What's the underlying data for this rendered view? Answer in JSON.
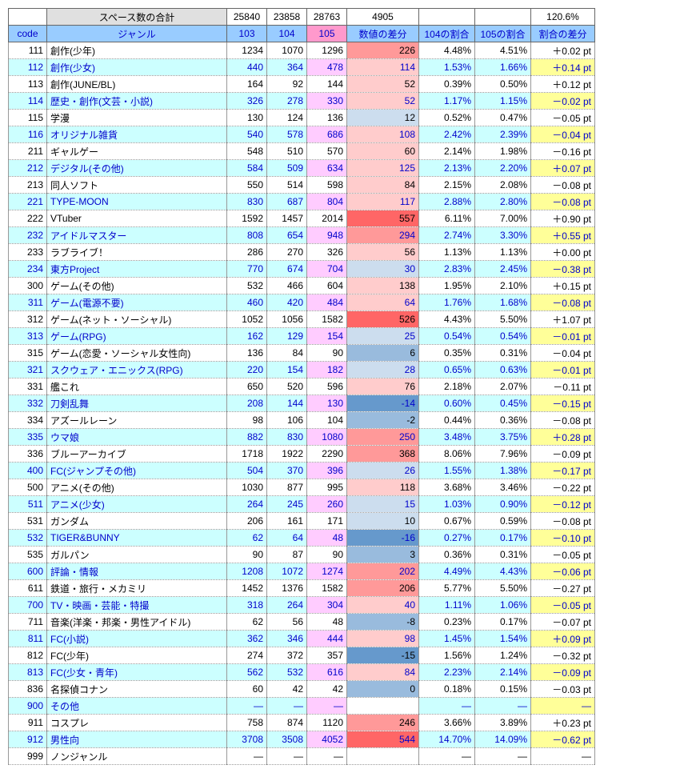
{
  "summary": {
    "label": "スペース数の合計",
    "c103": "25840",
    "c104": "23858",
    "c105": "28763",
    "diffNum": "4905",
    "ratio104": "",
    "ratio105": "",
    "diffRatio": "120.6%"
  },
  "headers": {
    "code": "code",
    "genre": "ジャンル",
    "c103": "103",
    "c104": "104",
    "c105": "105",
    "diffNum": "数値の差分",
    "ratio104": "104の割合",
    "ratio105": "105の割合",
    "diffRatio": "割合の差分"
  },
  "colors": {
    "summaryLabelBg": "#e0e0e0",
    "headerBg": "#99ccff",
    "headerPinkBg": "#ff99cc",
    "rowHighlightBg": "#ccffff",
    "pinkCellBg": "#ffccff",
    "yellowCellBg": "#ffff99",
    "blueText": "#0000cc",
    "diffRed1": "#ff6666",
    "diffRed2": "#ff9999",
    "diffRed3": "#ffcccc",
    "diffBlue1": "#6699cc",
    "diffBlue2": "#99bbdd",
    "diffBlue3": "#ccddee"
  },
  "colWidths": {
    "code": 48,
    "genre": 225,
    "c103": 50,
    "c104": 50,
    "c105": 50,
    "diffNum": 90,
    "ratio104": 70,
    "ratio105": 70,
    "diffRatio": 80
  },
  "rows": [
    {
      "code": "111",
      "genre": "創作(少年)",
      "c103": "1234",
      "c104": "1070",
      "c105": "1296",
      "diffNum": "226",
      "diffShade": "r2",
      "ratio104": "4.48%",
      "ratio105": "4.51%",
      "diffRatio": "＋0.02 pt",
      "hl": false,
      "yel": false
    },
    {
      "code": "112",
      "genre": "創作(少女)",
      "c103": "440",
      "c104": "364",
      "c105": "478",
      "diffNum": "114",
      "diffShade": "r3",
      "ratio104": "1.53%",
      "ratio105": "1.66%",
      "diffRatio": "＋0.14 pt",
      "hl": true,
      "yel": true
    },
    {
      "code": "113",
      "genre": "創作(JUNE/BL)",
      "c103": "164",
      "c104": "92",
      "c105": "144",
      "diffNum": "52",
      "diffShade": "r3",
      "ratio104": "0.39%",
      "ratio105": "0.50%",
      "diffRatio": "＋0.12 pt",
      "hl": false,
      "yel": false
    },
    {
      "code": "114",
      "genre": "歴史・創作(文芸・小説)",
      "c103": "326",
      "c104": "278",
      "c105": "330",
      "diffNum": "52",
      "diffShade": "r3",
      "ratio104": "1.17%",
      "ratio105": "1.15%",
      "diffRatio": "－0.02 pt",
      "hl": true,
      "yel": true
    },
    {
      "code": "115",
      "genre": "学漫",
      "c103": "130",
      "c104": "124",
      "c105": "136",
      "diffNum": "12",
      "diffShade": "b3",
      "ratio104": "0.52%",
      "ratio105": "0.47%",
      "diffRatio": "－0.05 pt",
      "hl": false,
      "yel": false
    },
    {
      "code": "116",
      "genre": "オリジナル雑貨",
      "c103": "540",
      "c104": "578",
      "c105": "686",
      "diffNum": "108",
      "diffShade": "r3",
      "ratio104": "2.42%",
      "ratio105": "2.39%",
      "diffRatio": "－0.04 pt",
      "hl": true,
      "yel": true
    },
    {
      "code": "211",
      "genre": "ギャルゲー",
      "c103": "548",
      "c104": "510",
      "c105": "570",
      "diffNum": "60",
      "diffShade": "r3",
      "ratio104": "2.14%",
      "ratio105": "1.98%",
      "diffRatio": "－0.16 pt",
      "hl": false,
      "yel": false
    },
    {
      "code": "212",
      "genre": "デジタル(その他)",
      "c103": "584",
      "c104": "509",
      "c105": "634",
      "diffNum": "125",
      "diffShade": "r3",
      "ratio104": "2.13%",
      "ratio105": "2.20%",
      "diffRatio": "＋0.07 pt",
      "hl": true,
      "yel": true
    },
    {
      "code": "213",
      "genre": "同人ソフト",
      "c103": "550",
      "c104": "514",
      "c105": "598",
      "diffNum": "84",
      "diffShade": "r3",
      "ratio104": "2.15%",
      "ratio105": "2.08%",
      "diffRatio": "－0.08 pt",
      "hl": false,
      "yel": false
    },
    {
      "code": "221",
      "genre": "TYPE-MOON",
      "c103": "830",
      "c104": "687",
      "c105": "804",
      "diffNum": "117",
      "diffShade": "r3",
      "ratio104": "2.88%",
      "ratio105": "2.80%",
      "diffRatio": "－0.08 pt",
      "hl": true,
      "yel": true
    },
    {
      "code": "222",
      "genre": "VTuber",
      "c103": "1592",
      "c104": "1457",
      "c105": "2014",
      "diffNum": "557",
      "diffShade": "r1",
      "ratio104": "6.11%",
      "ratio105": "7.00%",
      "diffRatio": "＋0.90 pt",
      "hl": false,
      "yel": false
    },
    {
      "code": "232",
      "genre": "アイドルマスター",
      "c103": "808",
      "c104": "654",
      "c105": "948",
      "diffNum": "294",
      "diffShade": "r2",
      "ratio104": "2.74%",
      "ratio105": "3.30%",
      "diffRatio": "＋0.55 pt",
      "hl": true,
      "yel": true
    },
    {
      "code": "233",
      "genre": "ラブライブ！",
      "c103": "286",
      "c104": "270",
      "c105": "326",
      "diffNum": "56",
      "diffShade": "r3",
      "ratio104": "1.13%",
      "ratio105": "1.13%",
      "diffRatio": "＋0.00 pt",
      "hl": false,
      "yel": false
    },
    {
      "code": "234",
      "genre": "東方Project",
      "c103": "770",
      "c104": "674",
      "c105": "704",
      "diffNum": "30",
      "diffShade": "b3",
      "ratio104": "2.83%",
      "ratio105": "2.45%",
      "diffRatio": "－0.38 pt",
      "hl": true,
      "yel": true
    },
    {
      "code": "300",
      "genre": "ゲーム(その他)",
      "c103": "532",
      "c104": "466",
      "c105": "604",
      "diffNum": "138",
      "diffShade": "r3",
      "ratio104": "1.95%",
      "ratio105": "2.10%",
      "diffRatio": "＋0.15 pt",
      "hl": false,
      "yel": false
    },
    {
      "code": "311",
      "genre": "ゲーム(電源不要)",
      "c103": "460",
      "c104": "420",
      "c105": "484",
      "diffNum": "64",
      "diffShade": "r3",
      "ratio104": "1.76%",
      "ratio105": "1.68%",
      "diffRatio": "－0.08 pt",
      "hl": true,
      "yel": true
    },
    {
      "code": "312",
      "genre": "ゲーム(ネット・ソーシャル)",
      "c103": "1052",
      "c104": "1056",
      "c105": "1582",
      "diffNum": "526",
      "diffShade": "r1",
      "ratio104": "4.43%",
      "ratio105": "5.50%",
      "diffRatio": "＋1.07 pt",
      "hl": false,
      "yel": false
    },
    {
      "code": "313",
      "genre": "ゲーム(RPG)",
      "c103": "162",
      "c104": "129",
      "c105": "154",
      "diffNum": "25",
      "diffShade": "b3",
      "ratio104": "0.54%",
      "ratio105": "0.54%",
      "diffRatio": "－0.01 pt",
      "hl": true,
      "yel": true
    },
    {
      "code": "315",
      "genre": "ゲーム(恋愛・ソーシャル女性向)",
      "c103": "136",
      "c104": "84",
      "c105": "90",
      "diffNum": "6",
      "diffShade": "b2",
      "ratio104": "0.35%",
      "ratio105": "0.31%",
      "diffRatio": "－0.04 pt",
      "hl": false,
      "yel": false
    },
    {
      "code": "321",
      "genre": "スクウェア・エニックス(RPG)",
      "c103": "220",
      "c104": "154",
      "c105": "182",
      "diffNum": "28",
      "diffShade": "b3",
      "ratio104": "0.65%",
      "ratio105": "0.63%",
      "diffRatio": "－0.01 pt",
      "hl": true,
      "yel": true
    },
    {
      "code": "331",
      "genre": "艦これ",
      "c103": "650",
      "c104": "520",
      "c105": "596",
      "diffNum": "76",
      "diffShade": "r3",
      "ratio104": "2.18%",
      "ratio105": "2.07%",
      "diffRatio": "－0.11 pt",
      "hl": false,
      "yel": false
    },
    {
      "code": "332",
      "genre": "刀剣乱舞",
      "c103": "208",
      "c104": "144",
      "c105": "130",
      "diffNum": "-14",
      "diffShade": "b1",
      "ratio104": "0.60%",
      "ratio105": "0.45%",
      "diffRatio": "－0.15 pt",
      "hl": true,
      "yel": true
    },
    {
      "code": "334",
      "genre": "アズールレーン",
      "c103": "98",
      "c104": "106",
      "c105": "104",
      "diffNum": "-2",
      "diffShade": "b2",
      "ratio104": "0.44%",
      "ratio105": "0.36%",
      "diffRatio": "－0.08 pt",
      "hl": false,
      "yel": false
    },
    {
      "code": "335",
      "genre": "ウマ娘",
      "c103": "882",
      "c104": "830",
      "c105": "1080",
      "diffNum": "250",
      "diffShade": "r2",
      "ratio104": "3.48%",
      "ratio105": "3.75%",
      "diffRatio": "＋0.28 pt",
      "hl": true,
      "yel": true
    },
    {
      "code": "336",
      "genre": "ブルーアーカイブ",
      "c103": "1718",
      "c104": "1922",
      "c105": "2290",
      "diffNum": "368",
      "diffShade": "r2",
      "ratio104": "8.06%",
      "ratio105": "7.96%",
      "diffRatio": "－0.09 pt",
      "hl": false,
      "yel": false
    },
    {
      "code": "400",
      "genre": "FC(ジャンプその他)",
      "c103": "504",
      "c104": "370",
      "c105": "396",
      "diffNum": "26",
      "diffShade": "b3",
      "ratio104": "1.55%",
      "ratio105": "1.38%",
      "diffRatio": "－0.17 pt",
      "hl": true,
      "yel": true
    },
    {
      "code": "500",
      "genre": "アニメ(その他)",
      "c103": "1030",
      "c104": "877",
      "c105": "995",
      "diffNum": "118",
      "diffShade": "r3",
      "ratio104": "3.68%",
      "ratio105": "3.46%",
      "diffRatio": "－0.22 pt",
      "hl": false,
      "yel": false
    },
    {
      "code": "511",
      "genre": "アニメ(少女)",
      "c103": "264",
      "c104": "245",
      "c105": "260",
      "diffNum": "15",
      "diffShade": "b3",
      "ratio104": "1.03%",
      "ratio105": "0.90%",
      "diffRatio": "－0.12 pt",
      "hl": true,
      "yel": true
    },
    {
      "code": "531",
      "genre": "ガンダム",
      "c103": "206",
      "c104": "161",
      "c105": "171",
      "diffNum": "10",
      "diffShade": "b3",
      "ratio104": "0.67%",
      "ratio105": "0.59%",
      "diffRatio": "－0.08 pt",
      "hl": false,
      "yel": false
    },
    {
      "code": "532",
      "genre": "TIGER&BUNNY",
      "c103": "62",
      "c104": "64",
      "c105": "48",
      "diffNum": "-16",
      "diffShade": "b1",
      "ratio104": "0.27%",
      "ratio105": "0.17%",
      "diffRatio": "－0.10 pt",
      "hl": true,
      "yel": true
    },
    {
      "code": "535",
      "genre": "ガルパン",
      "c103": "90",
      "c104": "87",
      "c105": "90",
      "diffNum": "3",
      "diffShade": "b2",
      "ratio104": "0.36%",
      "ratio105": "0.31%",
      "diffRatio": "－0.05 pt",
      "hl": false,
      "yel": false
    },
    {
      "code": "600",
      "genre": "評論・情報",
      "c103": "1208",
      "c104": "1072",
      "c105": "1274",
      "diffNum": "202",
      "diffShade": "r2",
      "ratio104": "4.49%",
      "ratio105": "4.43%",
      "diffRatio": "－0.06 pt",
      "hl": true,
      "yel": true
    },
    {
      "code": "611",
      "genre": "鉄道・旅行・メカミリ",
      "c103": "1452",
      "c104": "1376",
      "c105": "1582",
      "diffNum": "206",
      "diffShade": "r2",
      "ratio104": "5.77%",
      "ratio105": "5.50%",
      "diffRatio": "－0.27 pt",
      "hl": false,
      "yel": false
    },
    {
      "code": "700",
      "genre": "TV・映画・芸能・特撮",
      "c103": "318",
      "c104": "264",
      "c105": "304",
      "diffNum": "40",
      "diffShade": "r3",
      "ratio104": "1.11%",
      "ratio105": "1.06%",
      "diffRatio": "－0.05 pt",
      "hl": true,
      "yel": true
    },
    {
      "code": "711",
      "genre": "音楽(洋楽・邦楽・男性アイドル)",
      "c103": "62",
      "c104": "56",
      "c105": "48",
      "diffNum": "-8",
      "diffShade": "b2",
      "ratio104": "0.23%",
      "ratio105": "0.17%",
      "diffRatio": "－0.07 pt",
      "hl": false,
      "yel": false
    },
    {
      "code": "811",
      "genre": "FC(小説)",
      "c103": "362",
      "c104": "346",
      "c105": "444",
      "diffNum": "98",
      "diffShade": "r3",
      "ratio104": "1.45%",
      "ratio105": "1.54%",
      "diffRatio": "＋0.09 pt",
      "hl": true,
      "yel": true
    },
    {
      "code": "812",
      "genre": "FC(少年)",
      "c103": "274",
      "c104": "372",
      "c105": "357",
      "diffNum": "-15",
      "diffShade": "b1",
      "ratio104": "1.56%",
      "ratio105": "1.24%",
      "diffRatio": "－0.32 pt",
      "hl": false,
      "yel": false
    },
    {
      "code": "813",
      "genre": "FC(少女・青年)",
      "c103": "562",
      "c104": "532",
      "c105": "616",
      "diffNum": "84",
      "diffShade": "r3",
      "ratio104": "2.23%",
      "ratio105": "2.14%",
      "diffRatio": "－0.09 pt",
      "hl": true,
      "yel": true
    },
    {
      "code": "836",
      "genre": "名探偵コナン",
      "c103": "60",
      "c104": "42",
      "c105": "42",
      "diffNum": "0",
      "diffShade": "b2",
      "ratio104": "0.18%",
      "ratio105": "0.15%",
      "diffRatio": "－0.03 pt",
      "hl": false,
      "yel": false
    },
    {
      "code": "900",
      "genre": "その他",
      "c103": "—",
      "c104": "—",
      "c105": "—",
      "diffNum": "",
      "diffShade": "",
      "ratio104": "—",
      "ratio105": "—",
      "diffRatio": "—",
      "hl": true,
      "yel": true
    },
    {
      "code": "911",
      "genre": "コスプレ",
      "c103": "758",
      "c104": "874",
      "c105": "1120",
      "diffNum": "246",
      "diffShade": "r2",
      "ratio104": "3.66%",
      "ratio105": "3.89%",
      "diffRatio": "＋0.23 pt",
      "hl": false,
      "yel": false
    },
    {
      "code": "912",
      "genre": "男性向",
      "c103": "3708",
      "c104": "3508",
      "c105": "4052",
      "diffNum": "544",
      "diffShade": "r1",
      "ratio104": "14.70%",
      "ratio105": "14.09%",
      "diffRatio": "－0.62 pt",
      "hl": true,
      "yel": true
    },
    {
      "code": "999",
      "genre": "ノンジャンル",
      "c103": "—",
      "c104": "—",
      "c105": "—",
      "diffNum": "",
      "diffShade": "",
      "ratio104": "—",
      "ratio105": "—",
      "diffRatio": "—",
      "hl": false,
      "yel": false
    }
  ]
}
